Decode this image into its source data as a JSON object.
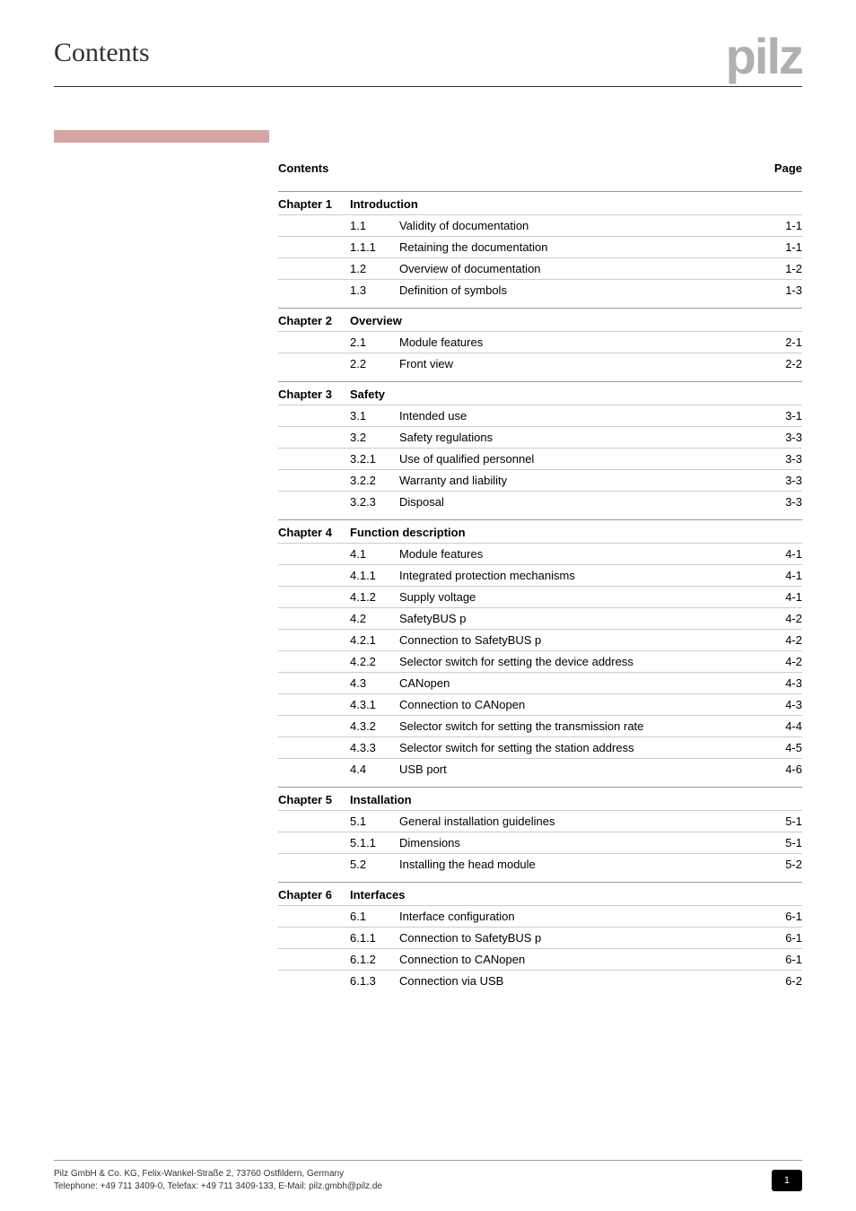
{
  "page_title": "Contents",
  "logo_text": "pilz",
  "toc_header": {
    "left": "Contents",
    "right": "Page"
  },
  "colors": {
    "accent_bar": "#d4a5a5",
    "logo": "#b0b0b0",
    "text": "#333333",
    "rule": "#999999",
    "row_rule": "#cccccc",
    "page_badge_bg": "#000000",
    "page_badge_fg": "#ffffff"
  },
  "chapters": [
    {
      "name": "Chapter 1",
      "title": "Introduction",
      "rows": [
        {
          "num": "1.1",
          "title": "Validity of documentation",
          "page": "1-1"
        },
        {
          "num": "1.1.1",
          "title": "Retaining the documentation",
          "page": "1-1"
        },
        {
          "num": "1.2",
          "title": "Overview of documentation",
          "page": "1-2"
        },
        {
          "num": "1.3",
          "title": "Definition of symbols",
          "page": "1-3"
        }
      ]
    },
    {
      "name": "Chapter 2",
      "title": "Overview",
      "rows": [
        {
          "num": "2.1",
          "title": "Module features",
          "page": "2-1"
        },
        {
          "num": "2.2",
          "title": "Front view",
          "page": "2-2"
        }
      ]
    },
    {
      "name": "Chapter 3",
      "title": "Safety",
      "rows": [
        {
          "num": "3.1",
          "title": "Intended use",
          "page": "3-1"
        },
        {
          "num": "3.2",
          "title": "Safety regulations",
          "page": "3-3"
        },
        {
          "num": "3.2.1",
          "title": "Use of qualified personnel",
          "page": "3-3"
        },
        {
          "num": "3.2.2",
          "title": "Warranty and liability",
          "page": "3-3"
        },
        {
          "num": "3.2.3",
          "title": "Disposal",
          "page": "3-3"
        }
      ]
    },
    {
      "name": "Chapter 4",
      "title": "Function description",
      "rows": [
        {
          "num": "4.1",
          "title": "Module features",
          "page": "4-1"
        },
        {
          "num": "4.1.1",
          "title": "Integrated protection mechanisms",
          "page": "4-1"
        },
        {
          "num": "4.1.2",
          "title": "Supply voltage",
          "page": "4-1"
        },
        {
          "num": "4.2",
          "title": "SafetyBUS p",
          "page": "4-2"
        },
        {
          "num": "4.2.1",
          "title": "Connection to SafetyBUS p",
          "page": "4-2"
        },
        {
          "num": "4.2.2",
          "title": "Selector switch for setting the device address",
          "page": "4-2"
        },
        {
          "num": "4.3",
          "title": "CANopen",
          "page": "4-3"
        },
        {
          "num": "4.3.1",
          "title": "Connection to CANopen",
          "page": "4-3"
        },
        {
          "num": "4.3.2",
          "title": "Selector switch for setting the transmission rate",
          "page": "4-4"
        },
        {
          "num": "4.3.3",
          "title": "Selector switch for setting the station address",
          "page": "4-5"
        },
        {
          "num": "4.4",
          "title": "USB port",
          "page": "4-6"
        }
      ]
    },
    {
      "name": "Chapter 5",
      "title": "Installation",
      "rows": [
        {
          "num": "5.1",
          "title": "General installation guidelines",
          "page": "5-1"
        },
        {
          "num": "5.1.1",
          "title": "Dimensions",
          "page": "5-1"
        },
        {
          "num": "5.2",
          "title": "Installing the head module",
          "page": "5-2"
        }
      ]
    },
    {
      "name": "Chapter 6",
      "title": "Interfaces",
      "rows": [
        {
          "num": "6.1",
          "title": "Interface configuration",
          "page": "6-1"
        },
        {
          "num": "6.1.1",
          "title": "Connection to SafetyBUS p",
          "page": "6-1"
        },
        {
          "num": "6.1.2",
          "title": "Connection to CANopen",
          "page": "6-1"
        },
        {
          "num": "6.1.3",
          "title": "Connection via USB",
          "page": "6-2"
        }
      ]
    }
  ],
  "footer": {
    "line1": "Pilz GmbH & Co. KG, Felix-Wankel-Straße 2, 73760 Ostfildern, Germany",
    "line2": "Telephone: +49 711 3409-0, Telefax: +49 711 3409-133, E-Mail: pilz.gmbh@pilz.de",
    "page_number": "1"
  }
}
